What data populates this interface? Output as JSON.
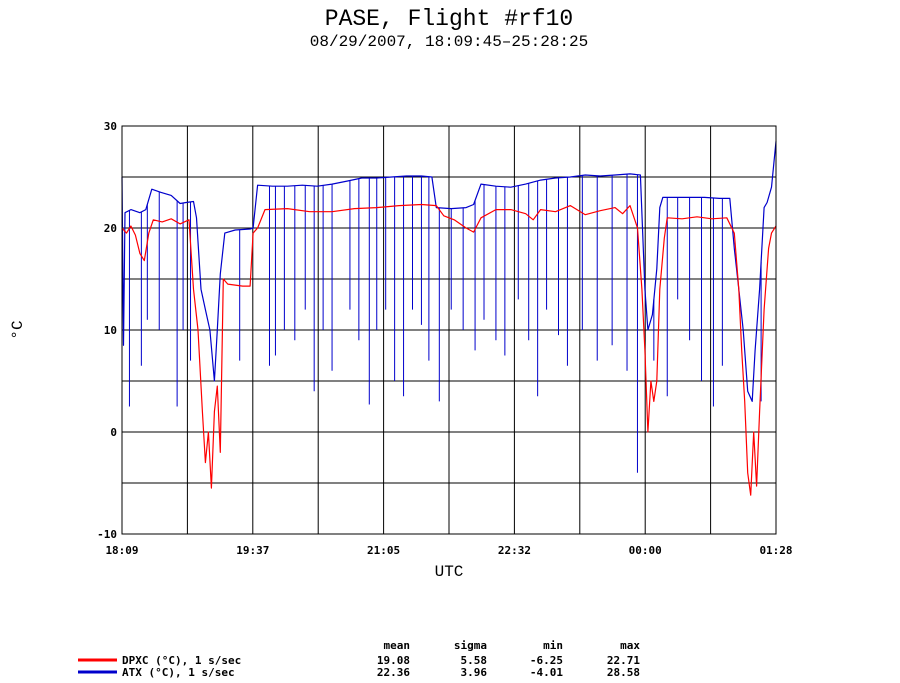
{
  "title": "PASE, Flight #rf10",
  "subtitle": "08/29/2007, 18:09:45–25:28:25",
  "chart_data": {
    "type": "line",
    "xlabel": "UTC",
    "ylabel": "°C",
    "x_tick_labels": [
      "18:09",
      "19:37",
      "21:05",
      "22:32",
      "00:00",
      "01:28"
    ],
    "y_tick_labels": [
      "30",
      "20",
      "10",
      "0",
      "-10"
    ],
    "ylim": [
      -10,
      30
    ],
    "grid": true,
    "legend_position": "bottom-left",
    "stats_headers": [
      "mean",
      "sigma",
      "min",
      "max"
    ],
    "series": [
      {
        "name": "DPXC (°C), 1 s/sec",
        "color": "#ff0000",
        "stats": [
          "19.08",
          "5.58",
          "-6.25",
          "22.71"
        ],
        "points": [
          [
            "18:09",
            20.0
          ],
          [
            "18:12",
            19.5
          ],
          [
            "18:15",
            20.2
          ],
          [
            "18:18",
            19.3
          ],
          [
            "18:21",
            17.5
          ],
          [
            "18:24",
            16.8
          ],
          [
            "18:27",
            19.5
          ],
          [
            "18:30",
            20.8
          ],
          [
            "18:36",
            20.6
          ],
          [
            "18:42",
            20.9
          ],
          [
            "18:48",
            20.4
          ],
          [
            "18:54",
            20.8
          ],
          [
            "18:57",
            14.0
          ],
          [
            "19:00",
            10.0
          ],
          [
            "19:03",
            2.0
          ],
          [
            "19:05",
            -3.0
          ],
          [
            "19:07",
            0.0
          ],
          [
            "19:09",
            -5.5
          ],
          [
            "19:11",
            2.0
          ],
          [
            "19:13",
            4.5
          ],
          [
            "19:15",
            -2.0
          ],
          [
            "19:17",
            15.0
          ],
          [
            "19:20",
            14.5
          ],
          [
            "19:30",
            14.3
          ],
          [
            "19:35",
            14.3
          ],
          [
            "19:37",
            19.5
          ],
          [
            "19:40",
            20.0
          ],
          [
            "19:45",
            21.8
          ],
          [
            "20:00",
            21.9
          ],
          [
            "20:15",
            21.6
          ],
          [
            "20:30",
            21.6
          ],
          [
            "20:45",
            21.9
          ],
          [
            "21:00",
            22.0
          ],
          [
            "21:15",
            22.2
          ],
          [
            "21:30",
            22.3
          ],
          [
            "21:40",
            22.2
          ],
          [
            "21:45",
            21.2
          ],
          [
            "21:52",
            20.8
          ],
          [
            "22:00",
            20.0
          ],
          [
            "22:05",
            19.6
          ],
          [
            "22:10",
            21.0
          ],
          [
            "22:20",
            21.8
          ],
          [
            "22:30",
            21.8
          ],
          [
            "22:40",
            21.4
          ],
          [
            "22:45",
            20.8
          ],
          [
            "22:50",
            21.8
          ],
          [
            "23:00",
            21.6
          ],
          [
            "23:10",
            22.2
          ],
          [
            "23:20",
            21.3
          ],
          [
            "23:30",
            21.7
          ],
          [
            "23:40",
            22.0
          ],
          [
            "23:45",
            21.4
          ],
          [
            "23:50",
            22.2
          ],
          [
            "23:55",
            20.0
          ],
          [
            "23:58",
            14.0
          ],
          [
            "24:00",
            8.0
          ],
          [
            "24:02",
            0.0
          ],
          [
            "24:04",
            5.0
          ],
          [
            "24:06",
            3.0
          ],
          [
            "24:08",
            5.0
          ],
          [
            "24:10",
            14.0
          ],
          [
            "24:13",
            19.0
          ],
          [
            "24:15",
            21.0
          ],
          [
            "24:25",
            20.9
          ],
          [
            "24:35",
            21.1
          ],
          [
            "24:45",
            20.9
          ],
          [
            "24:55",
            21.0
          ],
          [
            "25:00",
            19.5
          ],
          [
            "25:03",
            14.0
          ],
          [
            "25:05",
            8.0
          ],
          [
            "25:07",
            3.0
          ],
          [
            "25:09",
            -4.0
          ],
          [
            "25:11",
            -6.2
          ],
          [
            "25:13",
            0.0
          ],
          [
            "25:15",
            -5.3
          ],
          [
            "25:17",
            2.0
          ],
          [
            "25:20",
            12.0
          ],
          [
            "25:23",
            18.0
          ],
          [
            "25:25",
            19.5
          ],
          [
            "25:28",
            20.2
          ]
        ]
      },
      {
        "name": "ATX (°C), 1 s/sec",
        "color": "#0000cc",
        "stats": [
          "22.36",
          "3.96",
          "-4.01",
          "28.58"
        ],
        "points": [
          [
            "18:09",
            25.0
          ],
          [
            "18:10",
            8.5
          ],
          [
            "18:11",
            21.5
          ],
          [
            "18:15",
            21.8
          ],
          [
            "18:21",
            21.5
          ],
          [
            "18:25",
            21.8
          ],
          [
            "18:29",
            23.8
          ],
          [
            "18:35",
            23.5
          ],
          [
            "18:42",
            23.2
          ],
          [
            "18:48",
            22.4
          ],
          [
            "18:52",
            22.5
          ],
          [
            "18:57",
            22.6
          ],
          [
            "18:59",
            21.0
          ],
          [
            "19:02",
            14.0
          ],
          [
            "19:05",
            12.0
          ],
          [
            "19:08",
            10.0
          ],
          [
            "19:11",
            5.0
          ],
          [
            "19:13",
            10.0
          ],
          [
            "19:15",
            15.5
          ],
          [
            "19:18",
            19.5
          ],
          [
            "19:25",
            19.8
          ],
          [
            "19:35",
            19.9
          ],
          [
            "19:37",
            20.0
          ],
          [
            "19:40",
            24.2
          ],
          [
            "19:50",
            24.1
          ],
          [
            "20:00",
            24.1
          ],
          [
            "20:10",
            24.2
          ],
          [
            "20:20",
            24.1
          ],
          [
            "20:30",
            24.3
          ],
          [
            "20:40",
            24.6
          ],
          [
            "20:50",
            24.9
          ],
          [
            "21:00",
            24.9
          ],
          [
            "21:10",
            25.0
          ],
          [
            "21:20",
            25.1
          ],
          [
            "21:30",
            25.1
          ],
          [
            "21:37",
            25.0
          ],
          [
            "21:40",
            22.0
          ],
          [
            "21:50",
            21.9
          ],
          [
            "22:00",
            22.0
          ],
          [
            "22:05",
            22.3
          ],
          [
            "22:10",
            24.3
          ],
          [
            "22:20",
            24.1
          ],
          [
            "22:30",
            24.0
          ],
          [
            "22:40",
            24.3
          ],
          [
            "22:50",
            24.7
          ],
          [
            "23:00",
            24.9
          ],
          [
            "23:10",
            25.0
          ],
          [
            "23:20",
            25.2
          ],
          [
            "23:30",
            25.1
          ],
          [
            "23:40",
            25.2
          ],
          [
            "23:50",
            25.3
          ],
          [
            "23:57",
            25.2
          ],
          [
            "24:00",
            14.0
          ],
          [
            "24:02",
            10.0
          ],
          [
            "24:05",
            11.5
          ],
          [
            "24:08",
            16.0
          ],
          [
            "24:10",
            22.0
          ],
          [
            "24:12",
            23.0
          ],
          [
            "24:20",
            23.0
          ],
          [
            "24:30",
            23.0
          ],
          [
            "24:40",
            23.0
          ],
          [
            "24:50",
            22.9
          ],
          [
            "24:57",
            22.9
          ],
          [
            "25:00",
            18.0
          ],
          [
            "25:03",
            14.0
          ],
          [
            "25:06",
            10.0
          ],
          [
            "25:09",
            4.0
          ],
          [
            "25:12",
            3.0
          ],
          [
            "25:14",
            8.0
          ],
          [
            "25:17",
            14.0
          ],
          [
            "25:20",
            22.0
          ],
          [
            "25:22",
            22.5
          ],
          [
            "25:25",
            24.0
          ],
          [
            "25:28",
            28.5
          ]
        ],
        "spikes": [
          [
            "18:14",
            2.5
          ],
          [
            "18:22",
            6.5
          ],
          [
            "18:26",
            11.0
          ],
          [
            "18:34",
            10.0
          ],
          [
            "18:46",
            2.5
          ],
          [
            "18:50",
            10.0
          ],
          [
            "18:55",
            7.0
          ],
          [
            "19:28",
            7.0
          ],
          [
            "19:48",
            6.5
          ],
          [
            "19:52",
            7.5
          ],
          [
            "19:58",
            10.0
          ],
          [
            "20:05",
            9.0
          ],
          [
            "20:12",
            12.0
          ],
          [
            "20:18",
            4.0
          ],
          [
            "20:24",
            10.0
          ],
          [
            "20:30",
            6.0
          ],
          [
            "20:42",
            12.0
          ],
          [
            "20:48",
            9.0
          ],
          [
            "20:55",
            2.7
          ],
          [
            "21:00",
            10.0
          ],
          [
            "21:06",
            12.0
          ],
          [
            "21:12",
            5.0
          ],
          [
            "21:18",
            3.5
          ],
          [
            "21:24",
            12.0
          ],
          [
            "21:30",
            10.5
          ],
          [
            "21:35",
            7.0
          ],
          [
            "21:42",
            3.0
          ],
          [
            "21:50",
            12.0
          ],
          [
            "21:58",
            10.0
          ],
          [
            "22:06",
            8.0
          ],
          [
            "22:12",
            11.0
          ],
          [
            "22:20",
            9.0
          ],
          [
            "22:26",
            7.5
          ],
          [
            "22:35",
            13.0
          ],
          [
            "22:42",
            9.0
          ],
          [
            "22:48",
            3.5
          ],
          [
            "22:54",
            12.0
          ],
          [
            "23:02",
            9.5
          ],
          [
            "23:08",
            6.5
          ],
          [
            "23:18",
            10.0
          ],
          [
            "23:28",
            7.0
          ],
          [
            "23:38",
            8.5
          ],
          [
            "23:48",
            6.0
          ],
          [
            "23:55",
            -4.0
          ],
          [
            "24:06",
            7.0
          ],
          [
            "24:15",
            3.5
          ],
          [
            "24:22",
            13.0
          ],
          [
            "24:30",
            9.0
          ],
          [
            "24:38",
            5.0
          ],
          [
            "24:46",
            2.5
          ],
          [
            "24:52",
            6.5
          ],
          [
            "25:18",
            3.0
          ]
        ]
      }
    ]
  }
}
